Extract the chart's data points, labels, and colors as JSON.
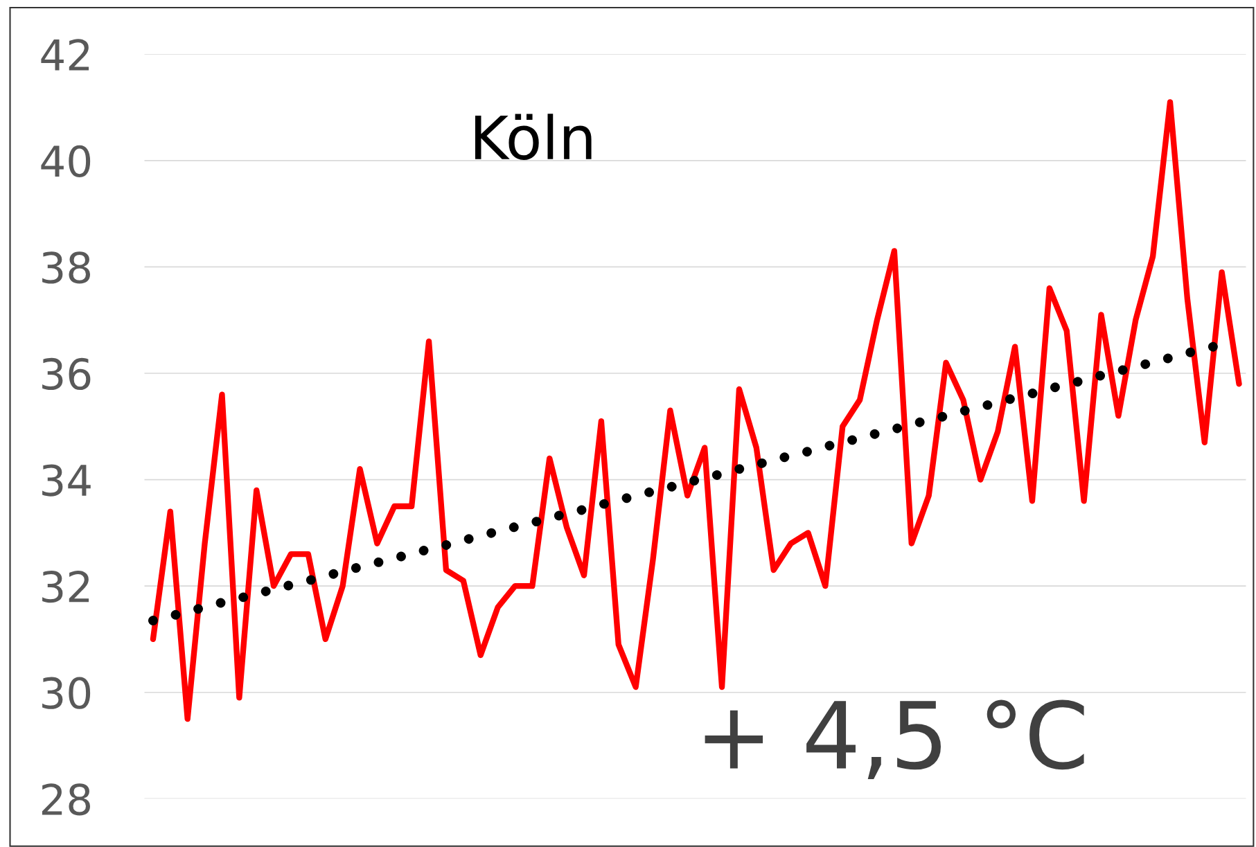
{
  "chart_data": {
    "type": "line",
    "title": "Köln",
    "annotations": [
      "+ 4,5 °C"
    ],
    "categories": [
      null,
      null,
      null,
      null,
      null,
      null,
      null,
      null,
      null,
      null,
      null,
      null,
      null,
      null,
      null,
      null,
      null,
      null,
      null,
      null,
      null,
      null,
      null,
      null,
      null,
      null,
      null,
      null,
      null,
      null,
      null,
      null,
      null,
      null,
      null,
      null,
      null,
      null,
      null,
      null,
      null,
      null,
      null,
      null,
      null,
      null,
      null,
      null,
      null,
      null,
      null,
      null,
      null,
      null,
      null,
      null,
      null,
      null,
      null,
      null,
      null,
      null,
      null,
      null
    ],
    "ylim": [
      28,
      42
    ],
    "yticks": [
      28,
      30,
      32,
      34,
      36,
      38,
      40,
      42
    ],
    "grid": "y",
    "tick_labels": "y",
    "series": [
      {
        "color": "#ff0000",
        "marker": "none",
        "line_style": "solid",
        "values": [
          31.0,
          33.4,
          29.5,
          32.8,
          35.6,
          29.9,
          33.8,
          32.0,
          32.6,
          32.6,
          31.0,
          32.0,
          34.2,
          32.8,
          33.5,
          33.5,
          36.6,
          32.3,
          32.1,
          30.7,
          31.6,
          32.0,
          32.0,
          34.4,
          33.1,
          32.2,
          35.1,
          30.9,
          30.1,
          32.5,
          35.3,
          33.7,
          34.6,
          30.1,
          35.7,
          34.6,
          32.3,
          32.8,
          33.0,
          32.0,
          35.0,
          35.5,
          37.0,
          38.3,
          32.8,
          33.7,
          36.2,
          35.5,
          34.0,
          34.9,
          36.5,
          33.6,
          37.6,
          36.8,
          33.6,
          37.1,
          35.2,
          37.0,
          38.2,
          41.1,
          37.4,
          34.7,
          37.9,
          35.8
        ]
      },
      {
        "color": "#000000",
        "line_style": "dotted",
        "values": [
          31.35,
          31.43,
          31.52,
          31.6,
          31.69,
          31.77,
          31.85,
          31.94,
          32.02,
          32.1,
          32.19,
          32.27,
          32.36,
          32.44,
          32.52,
          32.61,
          32.69,
          32.77,
          32.86,
          32.94,
          33.03,
          33.11,
          33.19,
          33.28,
          33.36,
          33.44,
          33.53,
          33.61,
          33.7,
          33.78,
          33.86,
          33.95,
          34.03,
          34.11,
          34.2,
          34.28,
          34.37,
          34.45,
          34.53,
          34.62,
          34.7,
          34.78,
          34.87,
          34.95,
          35.04,
          35.12,
          35.2,
          35.29,
          35.37,
          35.45,
          35.54,
          35.62,
          35.71,
          35.79,
          35.87,
          35.96,
          36.04,
          36.12,
          36.21,
          36.29,
          36.38,
          36.46,
          36.54,
          null
        ]
      }
    ]
  }
}
